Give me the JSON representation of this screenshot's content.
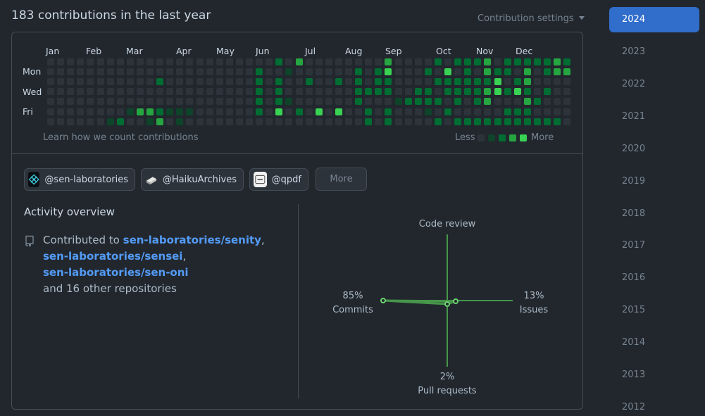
{
  "header": {
    "title": "183 contributions in the last year",
    "settings_label": "Contribution settings"
  },
  "graph": {
    "months": [
      "Jan",
      "Feb",
      "Mar",
      "Apr",
      "May",
      "Jun",
      "Jul",
      "Aug",
      "Sep",
      "Oct",
      "Nov",
      "Dec"
    ],
    "days": [
      "Mon",
      "Wed",
      "Fri"
    ],
    "learn_link": "Learn how we count contributions",
    "legend_less": "Less",
    "legend_more": "More",
    "colors": [
      "#2d333b",
      "#0e4429",
      "#006d32",
      "#26a641",
      "#39d353"
    ]
  },
  "orgs": [
    {
      "label": "@sen-laboratories",
      "icon": "sen-laboratories-logo-icon"
    },
    {
      "label": "@HaikuArchives",
      "icon": "haiku-archives-logo-icon"
    },
    {
      "label": "@qpdf",
      "icon": "qpdf-logo-icon"
    }
  ],
  "orgs_more": "More",
  "activity": {
    "title": "Activity overview",
    "prefix": "Contributed to",
    "repos": [
      "sen-laboratories/senity",
      "sen-laboratories/sensei",
      "sen-laboratories/sen-oni"
    ],
    "suffix": "and 16 other repositories"
  },
  "overview_chart": {
    "code_review_label": "Code review",
    "commits_label": "Commits",
    "commits_pct": "85%",
    "issues_label": "Issues",
    "issues_pct": "13%",
    "pr_label": "Pull requests",
    "pr_pct": "2%",
    "accent": "#46954a"
  },
  "years": [
    "2024",
    "2023",
    "2022",
    "2021",
    "2020",
    "2019",
    "2018",
    "2017",
    "2016",
    "2015",
    "2014",
    "2013",
    "2012"
  ],
  "active_year": "2024"
}
